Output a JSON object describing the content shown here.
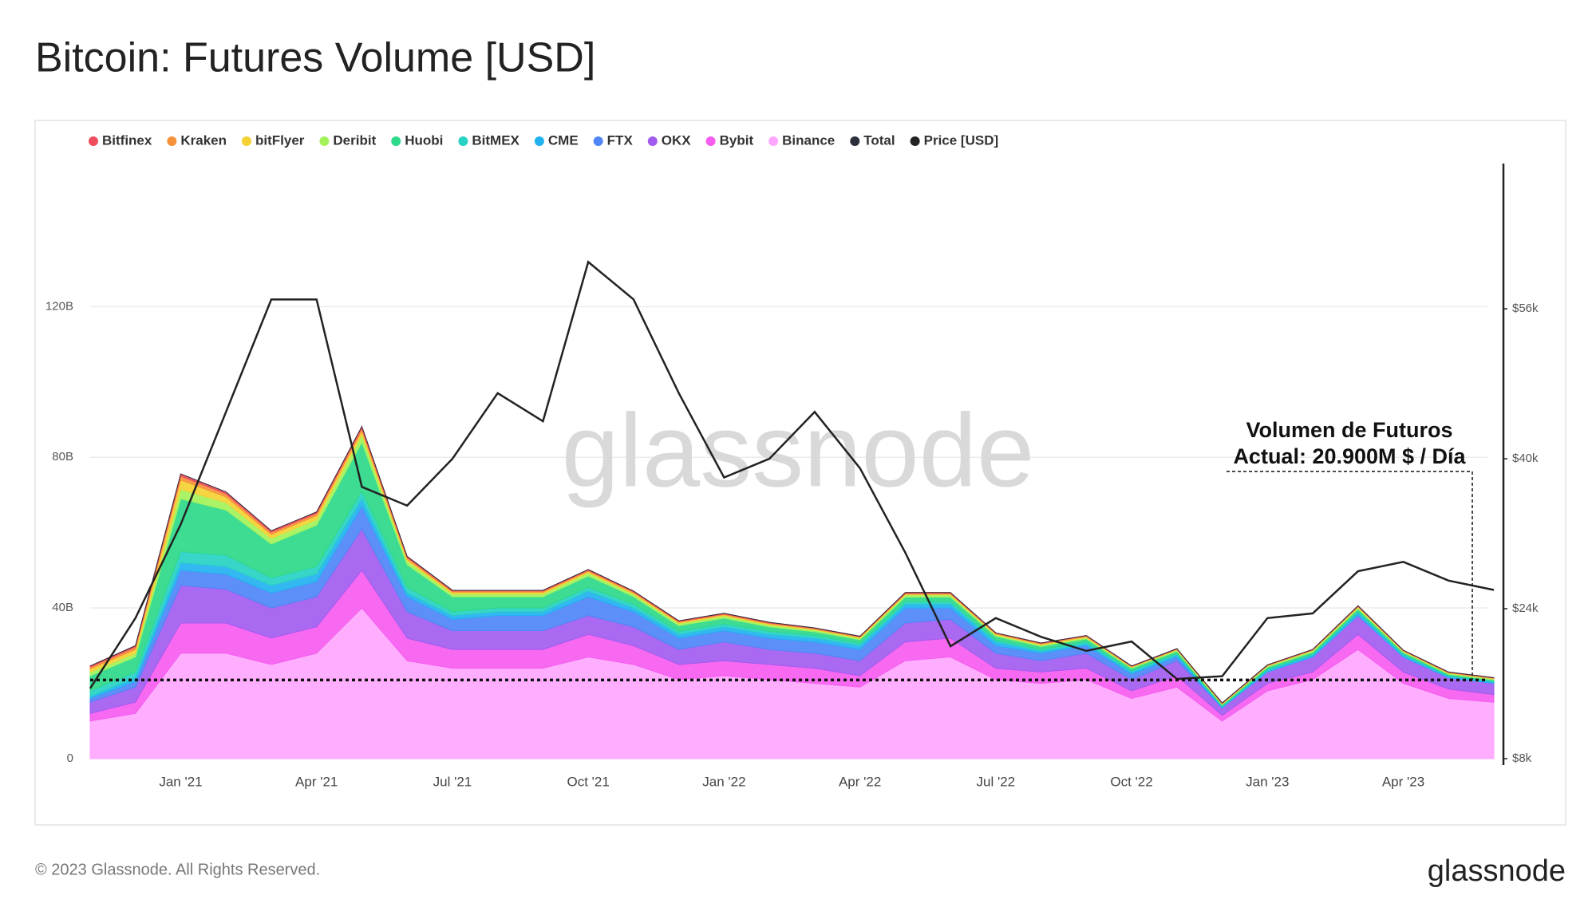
{
  "chart_data": {
    "type": "stacked_area",
    "title": "Bitcoin: Futures Volume [USD]",
    "watermark": "glassnode",
    "footer": "© 2023 Glassnode. All Rights Reserved.",
    "logo": "glassnode",
    "annotation": {
      "lines": [
        "Volumen de Futuros",
        "Actual: 20.900M $ / Día"
      ],
      "value": 20.9
    },
    "categories": [
      null,
      null,
      "Jan '21",
      null,
      null,
      "Apr '21",
      null,
      null,
      "Jul '21",
      null,
      null,
      "Oct '21",
      null,
      null,
      "Jan '22",
      null,
      null,
      "Apr '22",
      null,
      null,
      "Jul '22",
      null,
      null,
      "Oct '22",
      null,
      null,
      "Jan '23",
      null,
      null,
      "Apr '23",
      null,
      null
    ],
    "ylim": [
      0,
      158
    ],
    "yticks": [
      {
        "value": 0,
        "label": "0"
      },
      {
        "value": 40,
        "label": "40B"
      },
      {
        "value": 80,
        "label": "80B"
      },
      {
        "value": 120,
        "label": "120B"
      }
    ],
    "y2lim": [
      8000,
      71500
    ],
    "y2ticks": [
      {
        "value": 8000,
        "label": "$8k"
      },
      {
        "value": 24000,
        "label": "$24k"
      },
      {
        "value": 40000,
        "label": "$40k"
      },
      {
        "value": 56000,
        "label": "$56k"
      }
    ],
    "grid": true,
    "legend": "top-left",
    "series": [
      {
        "name": "Bitfinex",
        "color": "#f04e5e",
        "values": [
          0.3,
          0.4,
          0.6,
          0.5,
          0.4,
          0.4,
          0.5,
          0.3,
          0.2,
          0.2,
          0.2,
          0.2,
          0.2,
          0.2,
          0.2,
          0.2,
          0.1,
          0.1,
          0.2,
          0.2,
          0.1,
          0.1,
          0.1,
          0.1,
          0.1,
          0.1,
          0.1,
          0.1,
          0.1,
          0.1,
          0.1,
          0.1
        ]
      },
      {
        "name": "Kraken",
        "color": "#f7923a",
        "values": [
          0.5,
          0.6,
          1,
          0.8,
          0.6,
          0.6,
          0.7,
          0.4,
          0.3,
          0.3,
          0.3,
          0.3,
          0.3,
          0.2,
          0.2,
          0.2,
          0.2,
          0.2,
          0.2,
          0.2,
          0.2,
          0.2,
          0.2,
          0.1,
          0.1,
          0.1,
          0.1,
          0.1,
          0.2,
          0.1,
          0.1,
          0.1
        ]
      },
      {
        "name": "bitFlyer",
        "color": "#f5d133",
        "values": [
          0.8,
          1,
          2.5,
          1.5,
          1,
          1,
          1,
          0.5,
          0.4,
          0.4,
          0.4,
          0.4,
          0.3,
          0.3,
          0.3,
          0.3,
          0.2,
          0.2,
          0.2,
          0.2,
          0.2,
          0.2,
          0.2,
          0.1,
          0.1,
          0.1,
          0.1,
          0.1,
          0.1,
          0.1,
          0.1,
          0.1
        ]
      },
      {
        "name": "Deribit",
        "color": "#a3f25a",
        "values": [
          1,
          1,
          2.5,
          2,
          1.5,
          1.5,
          2,
          1,
          0.8,
          0.8,
          0.8,
          0.8,
          0.7,
          0.6,
          0.6,
          0.5,
          0.5,
          0.4,
          0.6,
          0.6,
          0.4,
          0.4,
          0.4,
          0.3,
          0.4,
          0.2,
          0.3,
          0.4,
          0.5,
          0.3,
          0.3,
          0.3
        ]
      },
      {
        "name": "Huobi",
        "color": "#2ed98a",
        "values": [
          4,
          4,
          14,
          12,
          9,
          11,
          13,
          6,
          4,
          3,
          3,
          3,
          2,
          1.5,
          1.5,
          1.2,
          1,
          1,
          1.2,
          1.2,
          1,
          0.8,
          0.8,
          0.6,
          0.6,
          0.3,
          0.5,
          0.5,
          0.6,
          0.4,
          0.3,
          0.3
        ]
      },
      {
        "name": "BitMEX",
        "color": "#27d1c4",
        "values": [
          1.5,
          1.5,
          3,
          3,
          2,
          2,
          2,
          1.5,
          1,
          1,
          1,
          1,
          1,
          0.8,
          0.8,
          0.8,
          0.7,
          0.6,
          0.7,
          0.7,
          0.5,
          0.5,
          0.5,
          0.4,
          0.4,
          0.2,
          0.3,
          0.3,
          0.3,
          0.3,
          0.2,
          0.2
        ]
      },
      {
        "name": "CME",
        "color": "#22b2f0",
        "values": [
          0.5,
          1,
          2,
          2,
          2,
          2,
          2,
          1,
          1,
          1,
          1,
          1.5,
          1,
          1,
          1,
          1,
          1,
          1,
          1,
          1,
          1,
          0.5,
          0.5,
          0.5,
          0.5,
          0.3,
          0.5,
          0.5,
          0.8,
          0.5,
          0.4,
          0.4
        ]
      },
      {
        "name": "FTX",
        "color": "#4f86f7",
        "values": [
          1,
          1.5,
          4,
          4,
          4,
          4,
          6,
          4,
          3,
          4,
          4,
          5,
          4,
          3,
          3,
          3,
          3,
          3,
          4,
          3,
          2,
          2,
          2,
          1.5,
          1,
          0,
          0,
          0,
          0,
          0,
          0,
          0
        ]
      },
      {
        "name": "OKX",
        "color": "#a25cf0",
        "values": [
          3,
          4,
          10,
          9,
          8,
          8,
          11,
          7,
          5,
          5,
          5,
          5,
          5,
          4,
          5,
          4,
          4,
          4,
          5,
          5,
          4,
          3,
          4,
          3,
          4,
          2,
          3,
          4,
          5,
          4,
          3,
          3
        ]
      },
      {
        "name": "Bybit",
        "color": "#f65cf0",
        "values": [
          2,
          3,
          8,
          8,
          7,
          7,
          10,
          6,
          5,
          5,
          5,
          6,
          5,
          4,
          4,
          4,
          4,
          3,
          5,
          5,
          3,
          3,
          3,
          2,
          3,
          1.5,
          2,
          2,
          4,
          3,
          2.5,
          2
        ]
      },
      {
        "name": "Binance",
        "color": "#ffa6ff",
        "values": [
          10,
          12,
          28,
          28,
          25,
          28,
          40,
          26,
          24,
          24,
          24,
          27,
          25,
          21,
          22,
          21,
          20,
          19,
          26,
          27,
          21,
          20,
          21,
          16,
          19,
          10,
          18,
          21,
          29,
          20,
          16,
          15
        ]
      },
      {
        "name": "Total",
        "color": "#2c2f3a",
        "values": [
          24.6,
          30,
          75.6,
          70.8,
          60.5,
          65.5,
          88.2,
          53.7,
          44.7,
          44.7,
          44.7,
          50.2,
          44.5,
          36.6,
          38.6,
          36.2,
          34.7,
          32.5,
          44.1,
          44.1,
          33.4,
          30.7,
          32.7,
          24.6,
          29.2,
          14.8,
          24.9,
          29,
          40.6,
          28.8,
          23,
          21.5
        ]
      },
      {
        "name": "Price [USD]",
        "color": "#222222",
        "axis": "y2",
        "values": [
          15500,
          23000,
          33000,
          45000,
          57000,
          57000,
          37000,
          35000,
          40000,
          47000,
          44000,
          61000,
          57000,
          47000,
          38000,
          40000,
          45000,
          39000,
          30000,
          20000,
          23000,
          21000,
          19500,
          20500,
          16500,
          16800,
          23000,
          23500,
          28000,
          29000,
          27000,
          26000
        ]
      }
    ]
  }
}
